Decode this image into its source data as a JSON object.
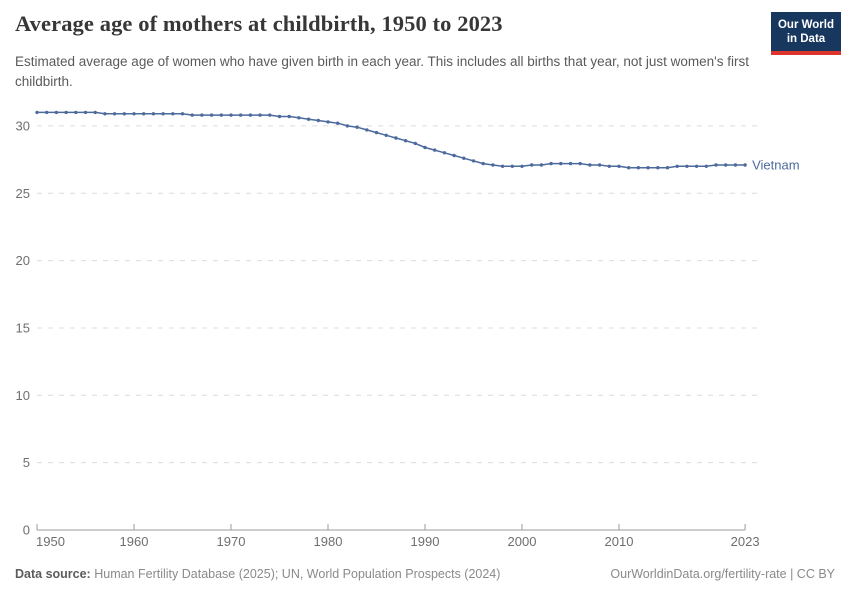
{
  "header": {
    "title": "Average age of mothers at childbirth, 1950 to 2023",
    "subtitle": "Estimated average age of women who have given birth in each year. This includes all births that year, not just women's first childbirth.",
    "logo": {
      "line1": "Our World",
      "line2": "in Data"
    }
  },
  "chart_data": {
    "type": "line",
    "title": "Average age of mothers at childbirth, 1950 to 2023",
    "xlabel": "",
    "ylabel": "",
    "xlim": [
      1950,
      2023
    ],
    "ylim": [
      0,
      31.5
    ],
    "x_ticks": [
      1950,
      1960,
      1970,
      1980,
      1990,
      2000,
      2010,
      2023
    ],
    "y_ticks": [
      0,
      5,
      10,
      15,
      20,
      25,
      30
    ],
    "grid": "horizontal-dashed",
    "legend_position": "end-of-line-label",
    "series": [
      {
        "name": "Vietnam",
        "color": "#4C6A9C",
        "x": [
          1950,
          1951,
          1952,
          1953,
          1954,
          1955,
          1956,
          1957,
          1958,
          1959,
          1960,
          1961,
          1962,
          1963,
          1964,
          1965,
          1966,
          1967,
          1968,
          1969,
          1970,
          1971,
          1972,
          1973,
          1974,
          1975,
          1976,
          1977,
          1978,
          1979,
          1980,
          1981,
          1982,
          1983,
          1984,
          1985,
          1986,
          1987,
          1988,
          1989,
          1990,
          1991,
          1992,
          1993,
          1994,
          1995,
          1996,
          1997,
          1998,
          1999,
          2000,
          2001,
          2002,
          2003,
          2004,
          2005,
          2006,
          2007,
          2008,
          2009,
          2010,
          2011,
          2012,
          2013,
          2014,
          2015,
          2016,
          2017,
          2018,
          2019,
          2020,
          2021,
          2022,
          2023
        ],
        "values": [
          31.0,
          31.0,
          31.0,
          31.0,
          31.0,
          31.0,
          31.0,
          30.9,
          30.9,
          30.9,
          30.9,
          30.9,
          30.9,
          30.9,
          30.9,
          30.9,
          30.8,
          30.8,
          30.8,
          30.8,
          30.8,
          30.8,
          30.8,
          30.8,
          30.8,
          30.7,
          30.7,
          30.6,
          30.5,
          30.4,
          30.3,
          30.2,
          30.0,
          29.9,
          29.7,
          29.5,
          29.3,
          29.1,
          28.9,
          28.7,
          28.4,
          28.2,
          28.0,
          27.8,
          27.6,
          27.4,
          27.2,
          27.1,
          27.0,
          27.0,
          27.0,
          27.1,
          27.1,
          27.2,
          27.2,
          27.2,
          27.2,
          27.1,
          27.1,
          27.0,
          27.0,
          26.9,
          26.9,
          26.9,
          26.9,
          26.9,
          27.0,
          27.0,
          27.0,
          27.0,
          27.1,
          27.1,
          27.1,
          27.1
        ]
      }
    ]
  },
  "footer": {
    "source_label": "Data source:",
    "source_text": "Human Fertility Database (2025); UN, World Population Prospects (2024)",
    "link_text": "OurWorldinData.org/fertility-rate | CC BY"
  },
  "colors": {
    "line": "#4C6A9C",
    "grid": "#dcdcdc",
    "axis": "#9b9b9b",
    "tick_text": "#6f6f6f",
    "title": "#373737",
    "subtitle": "#5a5a5a",
    "footer": "#8a8a8a",
    "logo_bg": "#18375f",
    "logo_red": "#dd352e"
  }
}
